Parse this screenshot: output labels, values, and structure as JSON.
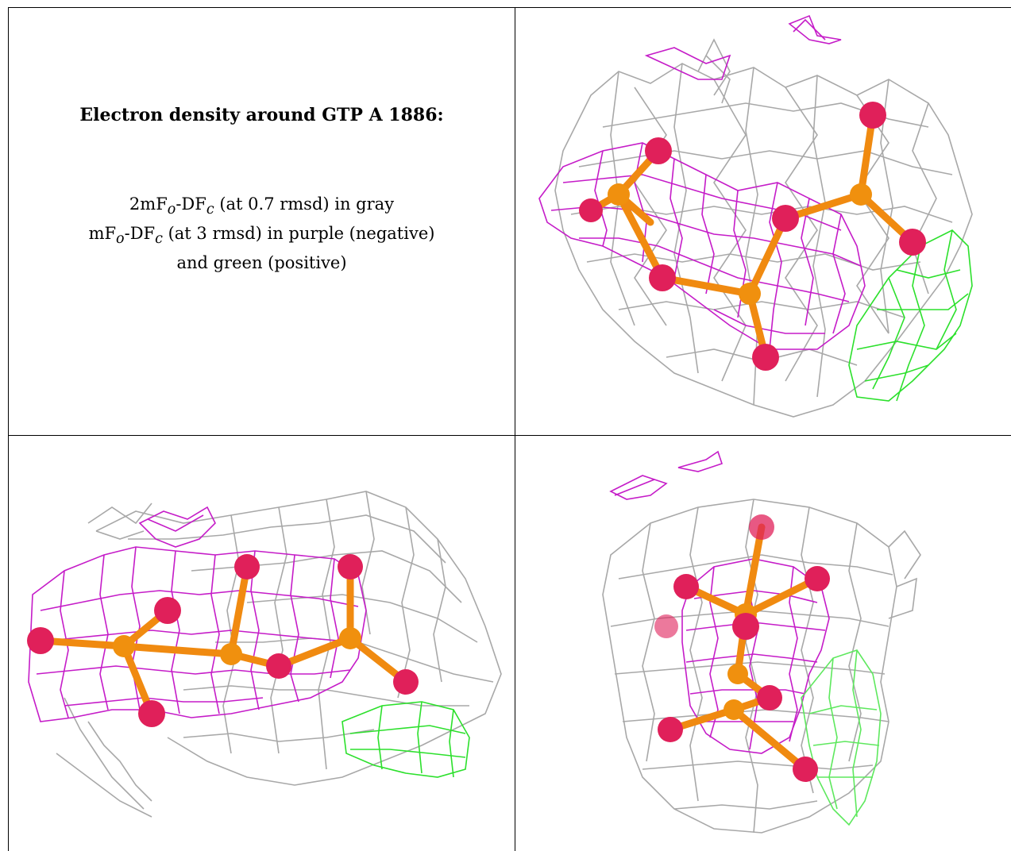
{
  "figure": {
    "title": "Electron density around GTP A 1886:",
    "legend": {
      "line1_prefix": "2mF",
      "line1_sub1": "o",
      "line1_mid": "-DF",
      "line1_sub2": "c",
      "line1_suffix": " (at 0.7 rmsd) in gray",
      "line2_prefix": "mF",
      "line2_sub1": "o",
      "line2_mid": "-DF",
      "line2_sub2": "c",
      "line2_suffix": " (at 3 rmsd) in purple (negative)",
      "line3": "and green (positive)"
    },
    "colors": {
      "gray_mesh": "#9a9a9a",
      "purple_mesh": "#c020c8",
      "green_mesh": "#28e028",
      "phosphorus": "#f08a10",
      "oxygen": "#e0205a",
      "border": "#000000"
    },
    "panels": [
      "view-1",
      "view-2",
      "view-3"
    ]
  }
}
